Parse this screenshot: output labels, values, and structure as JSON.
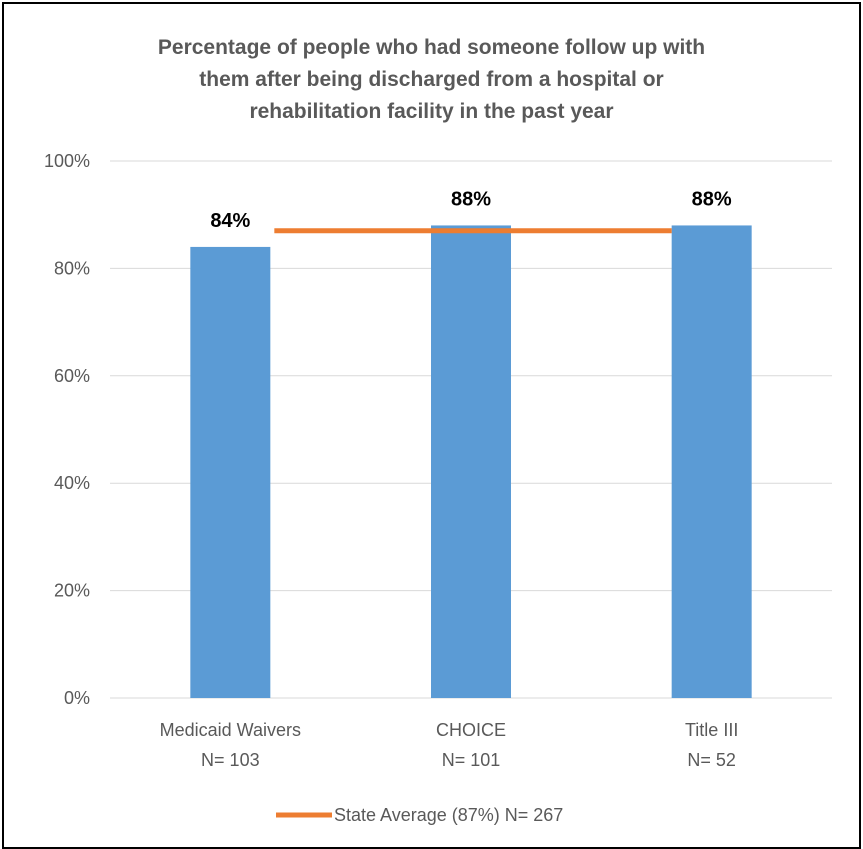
{
  "chart_data": {
    "type": "bar",
    "title_lines": [
      "Percentage of people who had someone follow up with",
      "them after being discharged from a hospital or",
      "rehabilitation facility in the past year"
    ],
    "categories": [
      "Medicaid Waivers",
      "CHOICE",
      "Title III"
    ],
    "category_counts": [
      "N= 103",
      "N= 101",
      "N= 52"
    ],
    "values": [
      84,
      88,
      88
    ],
    "data_labels": [
      "84%",
      "88%",
      "88%"
    ],
    "yticks": [
      "0%",
      "20%",
      "40%",
      "60%",
      "80%",
      "100%"
    ],
    "ylim": [
      0,
      100
    ],
    "grid": true,
    "reference_line": {
      "value": 87,
      "legend_label": "State Average (87%) N= 267"
    },
    "legend_position": "bottom",
    "colors": {
      "bar": "#5B9BD5",
      "reference_line": "#ED7D31",
      "grid": "#D9D9D9",
      "text": "#595959",
      "data_label": "#000000"
    }
  }
}
